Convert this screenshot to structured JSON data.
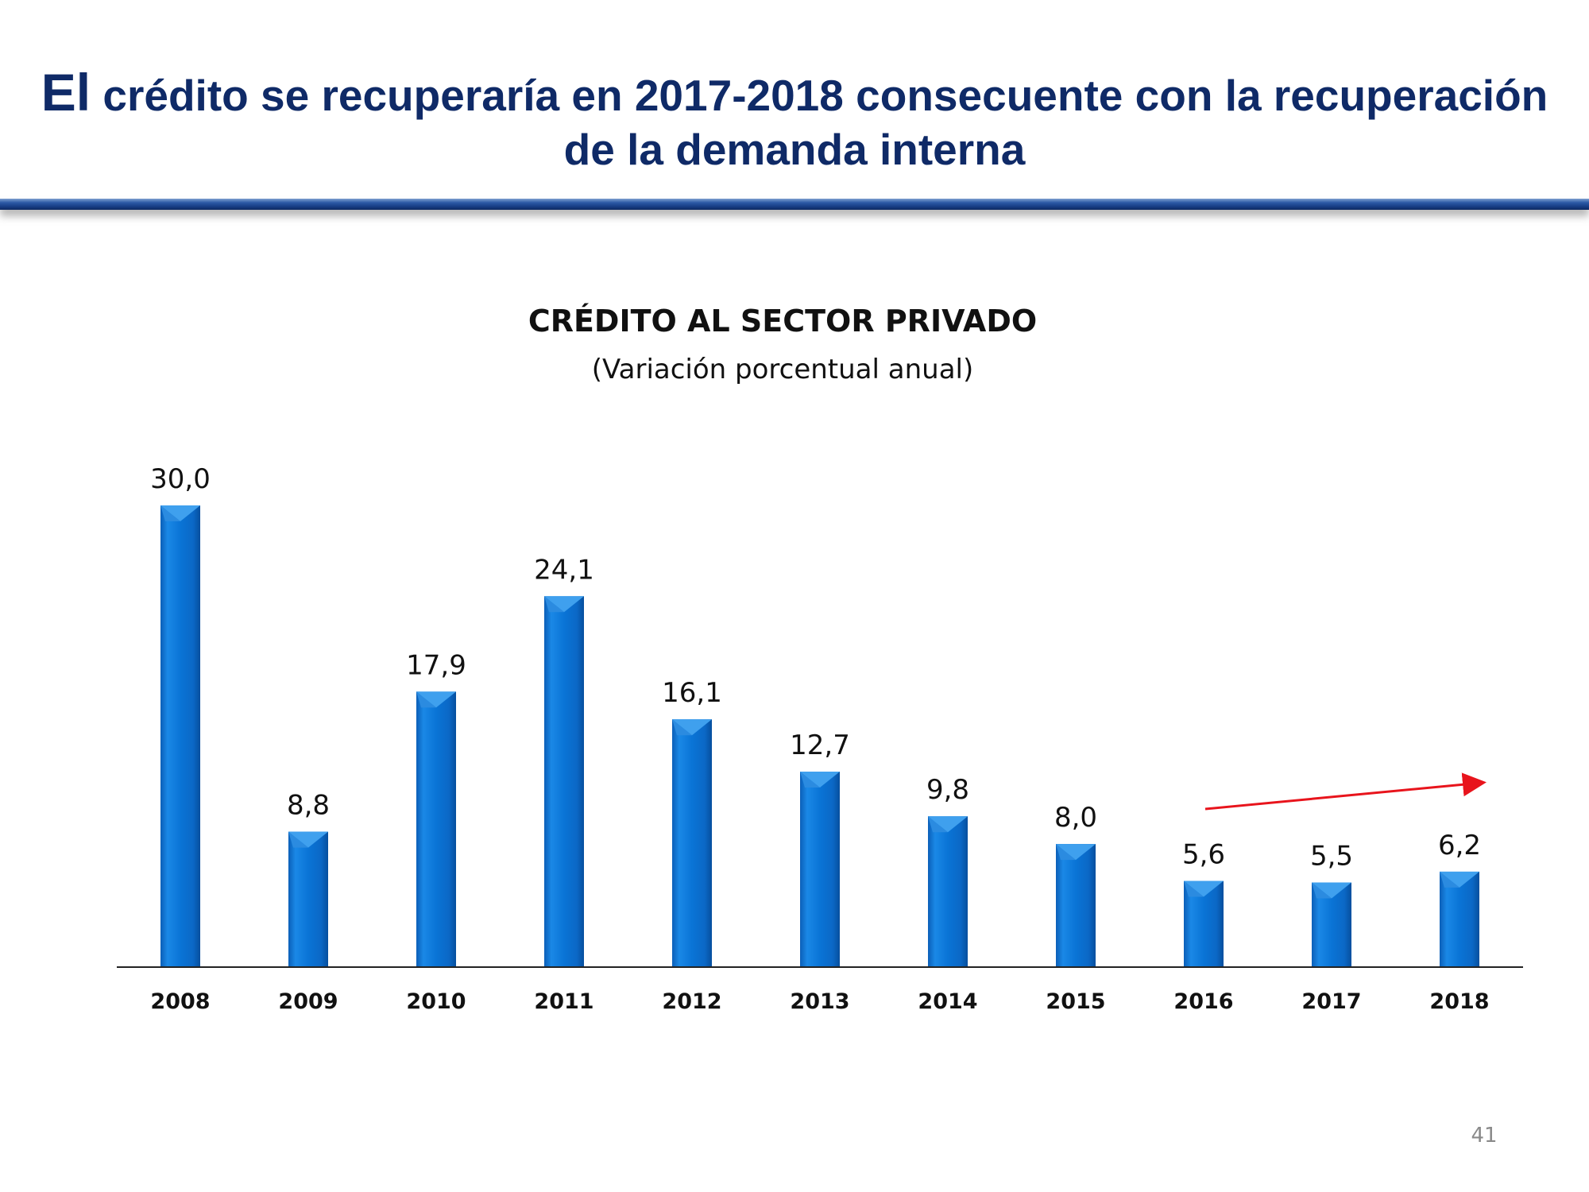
{
  "slide": {
    "title_lead": "El",
    "title_rest": " crédito se recuperaría en 2017-2018 consecuente con la recuperación",
    "title_line2": "de la demanda interna",
    "page_number": "41"
  },
  "colors": {
    "title": "#0f2a67",
    "bar": "#0a74d6",
    "bar_top": "#3fa0ee",
    "arrow": "#e8141c"
  },
  "chart_data": {
    "type": "bar",
    "title": "CRÉDITO AL SECTOR PRIVADO",
    "subtitle": "(Variación porcentual anual)",
    "categories": [
      "2008",
      "2009",
      "2010",
      "2011",
      "2012",
      "2013",
      "2014",
      "2015",
      "2016",
      "2017",
      "2018"
    ],
    "values": [
      30.0,
      8.8,
      17.9,
      24.1,
      16.1,
      12.7,
      9.8,
      8.0,
      5.6,
      5.5,
      6.2
    ],
    "value_labels": [
      "30,0",
      "8,8",
      "17,9",
      "24,1",
      "16,1",
      "12,7",
      "9,8",
      "8,0",
      "5,6",
      "5,5",
      "6,2"
    ],
    "ylim": [
      0,
      30
    ],
    "grid": false,
    "legend": "none",
    "annotations": [
      {
        "type": "trend-arrow",
        "from_category": "2016",
        "to_category": "2018",
        "direction": "up"
      }
    ]
  }
}
